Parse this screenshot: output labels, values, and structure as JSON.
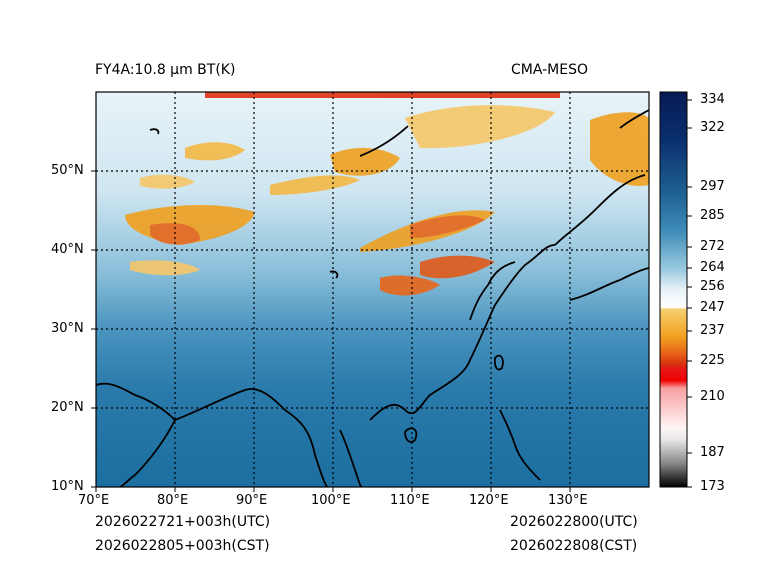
{
  "header": {
    "left_title": "FY4A:10.8 µm BT(K)",
    "right_title": "CMA-MESO"
  },
  "map": {
    "lon_ticks": [
      "70°E",
      "80°E",
      "90°E",
      "100°E",
      "110°E",
      "120°E",
      "130°E"
    ],
    "lat_ticks": [
      "10°N",
      "20°N",
      "30°N",
      "40°N",
      "50°N"
    ],
    "extent": {
      "lon_min": 70,
      "lon_max": 140,
      "lat_min": 10,
      "lat_max": 60
    }
  },
  "colorbar": {
    "labels": [
      "334",
      "322",
      "297",
      "285",
      "272",
      "264",
      "256",
      "247",
      "237",
      "225",
      "210",
      "187",
      "173"
    ],
    "range": [
      173,
      334
    ]
  },
  "footer": {
    "utc_run": "2026022721+003h(UTC)",
    "cst_run": "2026022805+003h(CST)",
    "utc_valid": "2026022800(UTC)",
    "cst_valid": "2026022808(CST)"
  },
  "colors": {
    "ocean": "#1c6fa0",
    "land_cold": "#9ccbe0",
    "cloud_warm": "#f0a020",
    "cloud_hot": "#e03010"
  }
}
